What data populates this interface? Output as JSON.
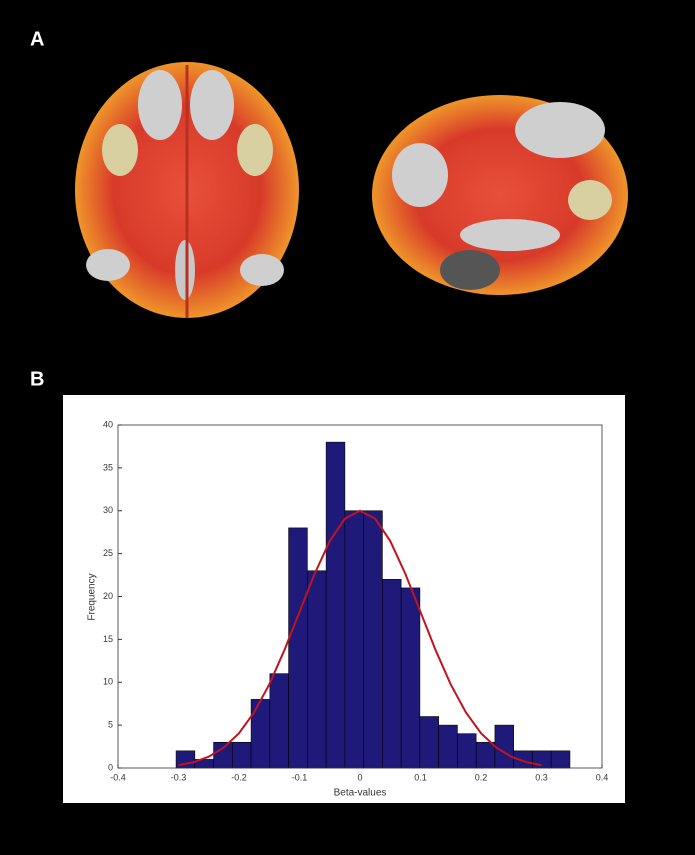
{
  "panel_labels": [
    "A",
    "B"
  ],
  "chart_data": {
    "type": "histogram",
    "x_label": "Beta-values",
    "y_label": "Frequency",
    "bins": [
      -0.304,
      -0.273,
      -0.242,
      -0.211,
      -0.18,
      -0.149,
      -0.118,
      -0.087,
      -0.056,
      -0.025,
      0.006,
      0.037,
      0.068,
      0.099,
      0.13,
      0.161,
      0.192,
      0.223,
      0.254,
      0.285,
      0.316,
      0.347
    ],
    "values": [
      2,
      1,
      3,
      3,
      8,
      11,
      28,
      23,
      38,
      30,
      30,
      22,
      21,
      6,
      5,
      4,
      3,
      5,
      2,
      2,
      2
    ],
    "color": "#1f1a7a",
    "fit": {
      "color": "#c0141e",
      "x": [
        -0.3,
        -0.275,
        -0.25,
        -0.225,
        -0.2,
        -0.175,
        -0.15,
        -0.125,
        -0.1,
        -0.075,
        -0.05,
        -0.025,
        0,
        0.025,
        0.05,
        0.075,
        0.1,
        0.125,
        0.15,
        0.175,
        0.2,
        0.225,
        0.25,
        0.275,
        0.3
      ],
      "values": [
        0.33,
        0.68,
        1.32,
        2.39,
        4.06,
        6.49,
        9.74,
        13.74,
        18.2,
        22.64,
        26.47,
        29.08,
        30,
        29.08,
        26.47,
        22.64,
        18.2,
        13.74,
        9.74,
        6.49,
        4.06,
        2.39,
        1.32,
        0.68,
        0.33
      ]
    },
    "xlim": [
      -0.4,
      0.4
    ],
    "xticks": [
      -0.4,
      -0.3,
      -0.2,
      -0.1,
      0,
      0.1,
      0.2,
      0.3,
      0.4
    ],
    "ylim": [
      0,
      40
    ],
    "yticks": [
      0,
      5,
      10,
      15,
      20,
      25,
      30,
      35,
      40
    ]
  }
}
